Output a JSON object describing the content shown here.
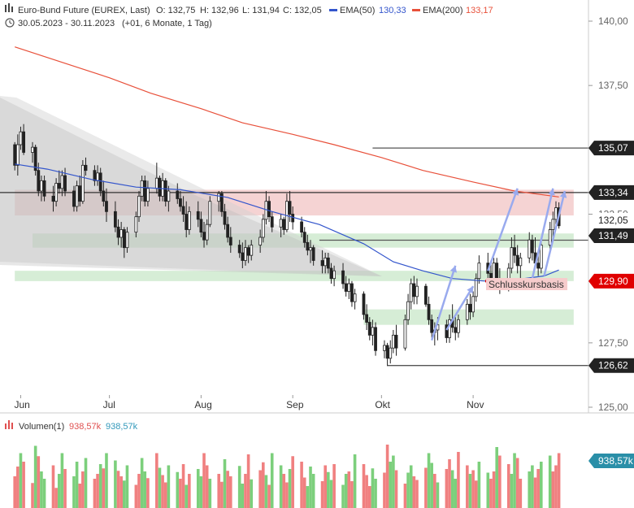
{
  "header": {
    "instrument": "Euro-Bund Future (EUREX, Last)",
    "ohlc": [
      "O: 132,75",
      "H: 132,96",
      "L: 131,94",
      "C: 132,05"
    ],
    "ema50_label": "EMA(50)",
    "ema50_value": "130,33",
    "ema200_label": "EMA(200)",
    "ema200_value": "133,17",
    "range": "30.05.2023 - 30.11.2023",
    "range_detail": "(+01, 6 Monate, 1 Tag)"
  },
  "volume_header": {
    "label": "Volumen(1)",
    "value_red": "938,57k",
    "value_blue": "938,57k",
    "axis_badge": "938,57k"
  },
  "annotation": {
    "text": "Schlusskursbasis"
  },
  "colors": {
    "up": "#222222",
    "down": "#222222",
    "ema50": "#3355cc",
    "ema200": "#e8503a",
    "resistance_zone": "#f2c4c4",
    "support_zone": "#cce8cc",
    "arrow": "#99aaee",
    "vol_up": "#7ccf7c",
    "vol_down": "#f08080",
    "price_badge": "#222222",
    "close_badge": "#e00000"
  },
  "chart_data": {
    "type": "candlestick",
    "x_range": [
      "2023-05-30",
      "2023-11-30"
    ],
    "ylim": [
      125.0,
      140.5
    ],
    "y_ticks": [
      "140,00",
      "137,50",
      "132,50",
      "127,50",
      "125,00"
    ],
    "x_ticks": [
      "Jun",
      "Jul",
      "Aug",
      "Sep",
      "Okt",
      "Nov"
    ],
    "price_levels": [
      {
        "value": 135.07,
        "label": "135,07"
      },
      {
        "value": 133.34,
        "label": "133,34"
      },
      {
        "value": 132.05,
        "label": "132,05"
      },
      {
        "value": 131.49,
        "label": "131,49"
      },
      {
        "value": 129.9,
        "label": "129,90"
      },
      {
        "value": 126.62,
        "label": "126,62"
      }
    ],
    "zones": [
      {
        "kind": "resistance",
        "from": 132.45,
        "to": 133.45,
        "start": "2023-05-30",
        "end": "2023-12-05"
      },
      {
        "kind": "support",
        "from": 131.2,
        "to": 131.75,
        "start": "2023-06-05",
        "end": "2023-12-05"
      },
      {
        "kind": "support",
        "from": 129.9,
        "to": 130.3,
        "start": "2023-05-30",
        "end": "2023-12-05"
      },
      {
        "kind": "support",
        "from": 128.2,
        "to": 128.8,
        "start": "2023-09-25",
        "end": "2023-12-05"
      }
    ],
    "series": [
      {
        "name": "EMA(50)",
        "points": [
          [
            "2023-05-30",
            134.45
          ],
          [
            "2023-06-10",
            134.25
          ],
          [
            "2023-06-25",
            133.85
          ],
          [
            "2023-07-10",
            133.55
          ],
          [
            "2023-07-25",
            133.45
          ],
          [
            "2023-08-10",
            133.15
          ],
          [
            "2023-08-25",
            132.6
          ],
          [
            "2023-09-10",
            132.1
          ],
          [
            "2023-09-25",
            131.35
          ],
          [
            "2023-10-05",
            130.65
          ],
          [
            "2023-10-15",
            130.3
          ],
          [
            "2023-10-25",
            130.0
          ],
          [
            "2023-11-05",
            129.9
          ],
          [
            "2023-11-15",
            129.95
          ],
          [
            "2023-11-25",
            130.1
          ],
          [
            "2023-11-30",
            130.33
          ]
        ]
      },
      {
        "name": "EMA(200)",
        "points": [
          [
            "2023-05-30",
            139.0
          ],
          [
            "2023-06-15",
            138.4
          ],
          [
            "2023-07-01",
            137.8
          ],
          [
            "2023-07-15",
            137.2
          ],
          [
            "2023-08-01",
            136.6
          ],
          [
            "2023-08-15",
            136.05
          ],
          [
            "2023-09-01",
            135.6
          ],
          [
            "2023-09-15",
            135.2
          ],
          [
            "2023-10-01",
            134.7
          ],
          [
            "2023-10-15",
            134.2
          ],
          [
            "2023-11-01",
            133.75
          ],
          [
            "2023-11-15",
            133.4
          ],
          [
            "2023-11-30",
            133.17
          ]
        ]
      }
    ],
    "candles": [
      [
        "2023-05-30",
        135.2,
        135.3,
        134.2,
        134.4
      ],
      [
        "2023-05-31",
        134.4,
        135.6,
        134.0,
        135.2
      ],
      [
        "2023-06-01",
        135.2,
        135.9,
        135.0,
        135.7
      ],
      [
        "2023-06-02",
        135.7,
        136.0,
        134.8,
        134.9
      ],
      [
        "2023-06-05",
        134.9,
        135.3,
        134.5,
        135.1
      ],
      [
        "2023-06-06",
        135.1,
        135.2,
        134.0,
        134.2
      ],
      [
        "2023-06-07",
        134.2,
        134.5,
        133.2,
        133.4
      ],
      [
        "2023-06-08",
        133.4,
        134.0,
        133.0,
        133.8
      ],
      [
        "2023-06-09",
        133.8,
        134.0,
        133.0,
        133.2
      ],
      [
        "2023-06-12",
        133.2,
        133.6,
        132.6,
        133.0
      ],
      [
        "2023-06-13",
        133.0,
        133.9,
        132.8,
        133.7
      ],
      [
        "2023-06-14",
        133.7,
        134.2,
        133.3,
        133.5
      ],
      [
        "2023-06-15",
        133.5,
        134.2,
        133.2,
        134.0
      ],
      [
        "2023-06-16",
        134.0,
        134.3,
        133.2,
        133.4
      ],
      [
        "2023-06-19",
        133.4,
        133.6,
        132.6,
        132.8
      ],
      [
        "2023-06-20",
        132.8,
        133.8,
        132.6,
        133.6
      ],
      [
        "2023-06-21",
        133.6,
        134.0,
        132.8,
        133.0
      ],
      [
        "2023-06-22",
        133.0,
        134.6,
        132.9,
        134.4
      ],
      [
        "2023-06-23",
        134.4,
        134.7,
        134.0,
        134.2
      ],
      [
        "2023-06-26",
        134.2,
        134.4,
        133.6,
        133.8
      ],
      [
        "2023-06-27",
        133.8,
        134.4,
        133.6,
        134.1
      ],
      [
        "2023-06-28",
        134.1,
        134.3,
        133.2,
        133.4
      ],
      [
        "2023-06-29",
        133.4,
        133.8,
        132.8,
        133.0
      ],
      [
        "2023-06-30",
        133.0,
        133.5,
        132.2,
        132.6
      ],
      [
        "2023-07-03",
        132.6,
        133.0,
        131.8,
        132.0
      ],
      [
        "2023-07-04",
        132.0,
        132.3,
        131.3,
        131.6
      ],
      [
        "2023-07-05",
        131.6,
        132.2,
        131.2,
        131.9
      ],
      [
        "2023-07-06",
        131.9,
        132.0,
        130.8,
        131.2
      ],
      [
        "2023-07-07",
        131.2,
        132.0,
        131.0,
        131.8
      ],
      [
        "2023-07-10",
        131.8,
        132.6,
        131.6,
        132.4
      ],
      [
        "2023-07-11",
        132.4,
        133.4,
        132.2,
        133.2
      ],
      [
        "2023-07-12",
        133.2,
        134.0,
        133.0,
        133.8
      ],
      [
        "2023-07-13",
        133.8,
        134.0,
        132.8,
        133.0
      ],
      [
        "2023-07-14",
        133.0,
        133.8,
        132.8,
        133.5
      ],
      [
        "2023-07-17",
        133.5,
        134.5,
        133.3,
        133.9
      ],
      [
        "2023-07-18",
        133.9,
        134.0,
        133.0,
        133.2
      ],
      [
        "2023-07-19",
        133.2,
        134.1,
        133.0,
        133.8
      ],
      [
        "2023-07-20",
        133.8,
        133.9,
        132.8,
        133.0
      ],
      [
        "2023-07-21",
        133.0,
        133.6,
        132.6,
        133.4
      ],
      [
        "2023-07-24",
        133.4,
        133.7,
        132.9,
        133.1
      ],
      [
        "2023-07-25",
        133.1,
        133.4,
        132.6,
        132.8
      ],
      [
        "2023-07-26",
        132.8,
        133.2,
        132.2,
        132.5
      ],
      [
        "2023-07-27",
        132.5,
        133.0,
        131.6,
        131.9
      ],
      [
        "2023-07-28",
        131.9,
        132.8,
        131.7,
        132.6
      ],
      [
        "2023-07-31",
        132.6,
        133.0,
        132.0,
        132.3
      ],
      [
        "2023-08-01",
        132.3,
        132.6,
        131.6,
        131.8
      ],
      [
        "2023-08-02",
        131.8,
        132.2,
        131.2,
        131.5
      ],
      [
        "2023-08-03",
        131.5,
        132.3,
        131.3,
        132.1
      ],
      [
        "2023-08-04",
        132.1,
        133.2,
        132.0,
        133.0
      ],
      [
        "2023-08-07",
        133.0,
        133.4,
        132.6,
        133.3
      ],
      [
        "2023-08-08",
        133.3,
        133.4,
        132.4,
        132.6
      ],
      [
        "2023-08-09",
        132.6,
        132.9,
        131.9,
        132.1
      ],
      [
        "2023-08-10",
        132.1,
        132.4,
        131.4,
        131.6
      ],
      [
        "2023-08-11",
        131.6,
        132.0,
        131.0,
        131.3
      ],
      [
        "2023-08-14",
        131.3,
        131.5,
        130.8,
        131.0
      ],
      [
        "2023-08-15",
        131.0,
        131.4,
        130.4,
        130.7
      ],
      [
        "2023-08-16",
        130.7,
        131.5,
        130.5,
        131.2
      ],
      [
        "2023-08-17",
        131.2,
        131.3,
        130.6,
        130.9
      ],
      [
        "2023-08-18",
        130.9,
        131.5,
        130.7,
        131.3
      ],
      [
        "2023-08-21",
        131.3,
        131.9,
        131.0,
        131.6
      ],
      [
        "2023-08-22",
        131.6,
        132.5,
        131.4,
        132.3
      ],
      [
        "2023-08-23",
        132.3,
        133.4,
        132.1,
        133.0
      ],
      [
        "2023-08-24",
        133.0,
        133.2,
        132.2,
        132.4
      ],
      [
        "2023-08-25",
        132.4,
        132.6,
        131.8,
        132.0
      ],
      [
        "2023-08-28",
        132.0,
        132.5,
        131.6,
        132.3
      ],
      [
        "2023-08-29",
        132.3,
        132.4,
        131.7,
        131.9
      ],
      [
        "2023-08-30",
        131.9,
        133.3,
        131.8,
        133.0
      ],
      [
        "2023-08-31",
        133.0,
        133.4,
        132.2,
        132.5
      ],
      [
        "2023-09-01",
        132.5,
        132.8,
        131.9,
        132.2
      ],
      [
        "2023-09-04",
        132.2,
        132.4,
        131.6,
        131.8
      ],
      [
        "2023-09-05",
        131.8,
        132.0,
        131.2,
        131.4
      ],
      [
        "2023-09-06",
        131.4,
        131.7,
        130.9,
        131.1
      ],
      [
        "2023-09-07",
        131.1,
        131.5,
        130.6,
        131.2
      ],
      [
        "2023-09-08",
        131.2,
        131.3,
        130.5,
        130.7
      ],
      [
        "2023-09-11",
        130.7,
        131.1,
        130.2,
        130.5
      ],
      [
        "2023-09-12",
        130.5,
        131.0,
        130.2,
        130.8
      ],
      [
        "2023-09-13",
        130.8,
        131.0,
        130.2,
        130.4
      ],
      [
        "2023-09-14",
        130.4,
        130.6,
        129.8,
        130.0
      ],
      [
        "2023-09-15",
        130.0,
        130.5,
        129.7,
        130.3
      ],
      [
        "2023-09-18",
        130.3,
        130.6,
        129.6,
        129.8
      ],
      [
        "2023-09-19",
        129.8,
        130.1,
        129.3,
        129.5
      ],
      [
        "2023-09-20",
        129.5,
        130.0,
        129.2,
        129.8
      ],
      [
        "2023-09-21",
        129.8,
        129.9,
        128.9,
        129.1
      ],
      [
        "2023-09-22",
        129.1,
        129.6,
        128.8,
        129.4
      ],
      [
        "2023-09-25",
        129.4,
        129.5,
        128.4,
        128.6
      ],
      [
        "2023-09-26",
        128.6,
        129.0,
        128.0,
        128.3
      ],
      [
        "2023-09-27",
        128.3,
        128.5,
        127.6,
        127.8
      ],
      [
        "2023-09-28",
        127.8,
        128.4,
        127.4,
        128.1
      ],
      [
        "2023-09-29",
        128.1,
        128.3,
        127.0,
        127.2
      ],
      [
        "2023-10-02",
        127.2,
        127.6,
        126.9,
        127.4
      ],
      [
        "2023-10-03",
        127.4,
        127.5,
        126.6,
        126.9
      ],
      [
        "2023-10-04",
        126.9,
        127.6,
        126.7,
        127.3
      ],
      [
        "2023-10-05",
        127.3,
        128.0,
        127.1,
        127.8
      ],
      [
        "2023-10-06",
        127.8,
        128.2,
        127.0,
        127.3
      ],
      [
        "2023-10-09",
        127.3,
        128.6,
        127.2,
        128.4
      ],
      [
        "2023-10-10",
        128.4,
        129.4,
        128.2,
        129.1
      ],
      [
        "2023-10-11",
        129.1,
        130.0,
        128.8,
        129.8
      ],
      [
        "2023-10-12",
        129.8,
        130.1,
        129.0,
        129.3
      ],
      [
        "2023-10-13",
        129.3,
        130.0,
        129.0,
        129.7
      ],
      [
        "2023-10-16",
        129.7,
        129.8,
        128.9,
        129.0
      ],
      [
        "2023-10-17",
        129.0,
        129.3,
        128.2,
        128.4
      ],
      [
        "2023-10-18",
        128.4,
        128.6,
        127.7,
        127.9
      ],
      [
        "2023-10-19",
        127.9,
        128.3,
        127.4,
        128.0
      ],
      [
        "2023-10-20",
        128.0,
        128.5,
        127.6,
        128.2
      ],
      [
        "2023-10-23",
        128.2,
        128.4,
        127.5,
        127.7
      ],
      [
        "2023-10-24",
        127.7,
        128.6,
        127.5,
        128.4
      ],
      [
        "2023-10-25",
        128.4,
        129.0,
        127.9,
        128.1
      ],
      [
        "2023-10-26",
        128.1,
        128.5,
        127.6,
        127.9
      ],
      [
        "2023-10-27",
        127.9,
        128.6,
        127.7,
        128.4
      ],
      [
        "2023-10-30",
        128.4,
        129.2,
        128.2,
        129.0
      ],
      [
        "2023-10-31",
        129.0,
        129.4,
        128.4,
        128.7
      ],
      [
        "2023-11-01",
        128.7,
        129.5,
        128.5,
        129.3
      ],
      [
        "2023-11-02",
        129.3,
        130.2,
        129.1,
        130.0
      ],
      [
        "2023-11-03",
        130.0,
        130.9,
        129.8,
        130.6
      ],
      [
        "2023-11-06",
        130.6,
        131.0,
        130.0,
        130.2
      ],
      [
        "2023-11-07",
        130.2,
        130.7,
        129.6,
        129.9
      ],
      [
        "2023-11-08",
        129.9,
        130.8,
        129.7,
        130.6
      ],
      [
        "2023-11-09",
        130.6,
        130.8,
        129.8,
        130.0
      ],
      [
        "2023-11-10",
        130.0,
        130.4,
        129.4,
        129.7
      ],
      [
        "2023-11-13",
        129.7,
        130.6,
        129.5,
        130.4
      ],
      [
        "2023-11-14",
        130.4,
        131.6,
        130.2,
        131.2
      ],
      [
        "2023-11-15",
        131.2,
        131.7,
        130.6,
        130.9
      ],
      [
        "2023-11-16",
        130.9,
        131.3,
        130.2,
        130.5
      ],
      [
        "2023-11-17",
        130.5,
        131.0,
        130.0,
        130.8
      ],
      [
        "2023-11-20",
        130.8,
        131.8,
        130.6,
        131.5
      ],
      [
        "2023-11-21",
        131.5,
        131.7,
        130.7,
        131.0
      ],
      [
        "2023-11-22",
        131.0,
        131.6,
        130.4,
        130.6
      ],
      [
        "2023-11-23",
        130.6,
        130.9,
        130.1,
        130.4
      ],
      [
        "2023-11-24",
        130.4,
        131.5,
        130.2,
        131.3
      ],
      [
        "2023-11-27",
        131.3,
        132.2,
        131.1,
        131.9
      ],
      [
        "2023-11-28",
        131.9,
        132.6,
        131.6,
        132.3
      ],
      [
        "2023-11-29",
        132.3,
        133.0,
        132.1,
        132.75
      ],
      [
        "2023-11-30",
        132.75,
        132.96,
        131.94,
        132.05
      ]
    ],
    "volume": {
      "ylim": [
        0,
        1200
      ],
      "values": [
        520,
        680,
        900,
        760,
        410,
        1020,
        850,
        600,
        480,
        700,
        330,
        560,
        900,
        640,
        520,
        760,
        400,
        600,
        820,
        480,
        560,
        720,
        650,
        900,
        780,
        610,
        520,
        450,
        700,
        380,
        560,
        820,
        600,
        490,
        900,
        660,
        540,
        420,
        700,
        590,
        480,
        720,
        380,
        560,
        640,
        520,
        900,
        700,
        480,
        560,
        430,
        800,
        610,
        520,
        690,
        400,
        560,
        880,
        470,
        620,
        750,
        540,
        380,
        900,
        700,
        560,
        420,
        640,
        850,
        760,
        500,
        360,
        680,
        560,
        440,
        700,
        590,
        460,
        720,
        380,
        560,
        600,
        440,
        880,
        720,
        540,
        360,
        650,
        480,
        580,
        1040,
        760,
        860,
        620,
        400,
        580,
        700,
        520,
        460,
        660,
        900,
        740,
        560,
        420,
        640,
        800,
        620,
        480,
        920,
        700,
        560,
        620,
        450,
        760,
        580,
        480,
        600,
        1000,
        860,
        720,
        560,
        900,
        820,
        480,
        600,
        700,
        500,
        640,
        760,
        860,
        600,
        700,
        900,
        1020,
        700
      ],
      "directions": "ddudduduudduuduuddudduduudduudduuddudduudduduudduddudduuddudduduudduddduuudduuduudduddduudduudduuddduududduuddudduuddudduudduudduuddd"
    }
  }
}
